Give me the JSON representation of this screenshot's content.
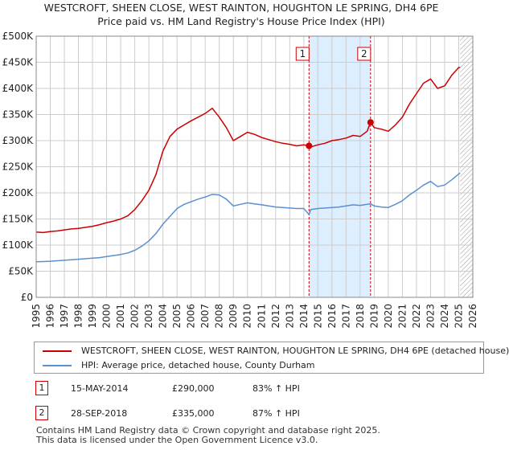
{
  "title_line1": "WESTCROFT, SHEEN CLOSE, WEST RAINTON, HOUGHTON LE SPRING, DH4 6PE",
  "title_line2": "Price paid vs. HM Land Registry's House Price Index (HPI)",
  "colors": {
    "property": "#cc0000",
    "hpi": "#5b8fd0",
    "shade": "#ddeeff",
    "grid": "#cccccc",
    "marker_line": "#cc0000"
  },
  "chart_data": {
    "type": "line",
    "title": "Price paid vs. HM Land Registry's House Price Index (HPI)",
    "xlabel": "",
    "ylabel": "",
    "xlim": [
      1995,
      2026
    ],
    "ylim": [
      0,
      500000
    ],
    "y_ticks": [
      0,
      50000,
      100000,
      150000,
      200000,
      250000,
      300000,
      350000,
      400000,
      450000,
      500000
    ],
    "y_tick_labels": [
      "£0",
      "£50K",
      "£100K",
      "£150K",
      "£200K",
      "£250K",
      "£300K",
      "£350K",
      "£400K",
      "£450K",
      "£500K"
    ],
    "x_ticks": [
      1995,
      1996,
      1997,
      1998,
      1999,
      2000,
      2001,
      2002,
      2003,
      2004,
      2005,
      2006,
      2007,
      2008,
      2009,
      2010,
      2011,
      2012,
      2013,
      2014,
      2015,
      2016,
      2017,
      2018,
      2019,
      2020,
      2021,
      2022,
      2023,
      2024,
      2025,
      2026
    ],
    "x_tick_labels": [
      "1995",
      "1996",
      "1997",
      "1998",
      "1999",
      "2000",
      "2001",
      "2002",
      "2003",
      "2004",
      "2005",
      "2006",
      "2007",
      "2008",
      "2009",
      "2010",
      "2011",
      "2012",
      "2013",
      "2014",
      "2015",
      "2016",
      "2017",
      "2018",
      "2019",
      "2020",
      "2021",
      "2022",
      "2023",
      "2024",
      "2025",
      "2026"
    ],
    "shaded_range": [
      2014.37,
      2018.74
    ],
    "hatched_from": 2025.1,
    "series": [
      {
        "name": "WESTCROFT, SHEEN CLOSE, WEST RAINTON, HOUGHTON LE SPRING, DH4 6PE (detached house)",
        "color": "#cc0000",
        "x": [
          1995.0,
          1995.5,
          1996.0,
          1996.5,
          1997.0,
          1997.5,
          1998.0,
          1998.5,
          1999.0,
          1999.5,
          2000.0,
          2000.5,
          2001.0,
          2001.5,
          2002.0,
          2002.5,
          2003.0,
          2003.5,
          2004.0,
          2004.5,
          2005.0,
          2005.5,
          2006.0,
          2006.5,
          2007.0,
          2007.5,
          2008.0,
          2008.5,
          2009.0,
          2009.5,
          2010.0,
          2010.5,
          2011.0,
          2011.5,
          2012.0,
          2012.5,
          2013.0,
          2013.5,
          2014.0,
          2014.37,
          2014.5,
          2015.0,
          2015.5,
          2016.0,
          2016.5,
          2017.0,
          2017.5,
          2018.0,
          2018.5,
          2018.74,
          2019.0,
          2019.5,
          2020.0,
          2020.5,
          2021.0,
          2021.5,
          2022.0,
          2022.5,
          2023.0,
          2023.5,
          2024.0,
          2024.5,
          2025.0,
          2025.1
        ],
        "values": [
          125000,
          124000,
          126000,
          127000,
          129000,
          131000,
          132000,
          134000,
          136000,
          139000,
          143000,
          146000,
          150000,
          156000,
          168000,
          185000,
          205000,
          235000,
          280000,
          308000,
          322000,
          330000,
          338000,
          345000,
          352000,
          362000,
          345000,
          325000,
          300000,
          308000,
          316000,
          312000,
          306000,
          302000,
          298000,
          295000,
          293000,
          290000,
          292000,
          290000,
          288000,
          292000,
          295000,
          300000,
          302000,
          305000,
          310000,
          308000,
          318000,
          335000,
          325000,
          322000,
          318000,
          330000,
          345000,
          370000,
          390000,
          410000,
          418000,
          400000,
          405000,
          425000,
          440000,
          440000
        ]
      },
      {
        "name": "HPI: Average price, detached house, County Durham",
        "color": "#5b8fd0",
        "x": [
          1995.0,
          1995.5,
          1996.0,
          1996.5,
          1997.0,
          1997.5,
          1998.0,
          1998.5,
          1999.0,
          1999.5,
          2000.0,
          2000.5,
          2001.0,
          2001.5,
          2002.0,
          2002.5,
          2003.0,
          2003.5,
          2004.0,
          2004.5,
          2005.0,
          2005.5,
          2006.0,
          2006.5,
          2007.0,
          2007.5,
          2008.0,
          2008.5,
          2009.0,
          2009.5,
          2010.0,
          2010.5,
          2011.0,
          2011.5,
          2012.0,
          2012.5,
          2013.0,
          2013.5,
          2014.0,
          2014.37,
          2014.5,
          2015.0,
          2015.5,
          2016.0,
          2016.5,
          2017.0,
          2017.5,
          2018.0,
          2018.5,
          2018.74,
          2019.0,
          2019.5,
          2020.0,
          2020.5,
          2021.0,
          2021.5,
          2022.0,
          2022.5,
          2023.0,
          2023.5,
          2024.0,
          2024.5,
          2025.0,
          2025.1
        ],
        "values": [
          68000,
          68500,
          69000,
          70000,
          71000,
          72000,
          73000,
          74000,
          75000,
          76000,
          78000,
          80000,
          82000,
          85000,
          90000,
          98000,
          108000,
          122000,
          140000,
          155000,
          170000,
          178000,
          183000,
          188000,
          192000,
          197000,
          196000,
          188000,
          175000,
          178000,
          181000,
          179000,
          177000,
          175000,
          173000,
          172000,
          171000,
          170000,
          170000,
          158500,
          168000,
          170000,
          171000,
          172000,
          173000,
          175000,
          177000,
          176000,
          178000,
          179000,
          175000,
          173000,
          172000,
          178000,
          185000,
          196000,
          205000,
          215000,
          222000,
          212000,
          215000,
          225000,
          236000,
          238000
        ]
      }
    ],
    "annotations": [
      {
        "label": "1",
        "x": 2014.37,
        "y": 290000
      },
      {
        "label": "2",
        "x": 2018.74,
        "y": 335000
      }
    ]
  },
  "legend": {
    "property_label": "WESTCROFT, SHEEN CLOSE, WEST RAINTON, HOUGHTON LE SPRING, DH4 6PE (detached house)",
    "hpi_label": "HPI: Average price, detached house, County Durham"
  },
  "sales": [
    {
      "num": "1",
      "date": "15-MAY-2014",
      "price": "£290,000",
      "hpi": "83% ↑ HPI"
    },
    {
      "num": "2",
      "date": "28-SEP-2018",
      "price": "£335,000",
      "hpi": "87% ↑ HPI"
    }
  ],
  "footer_line1": "Contains HM Land Registry data © Crown copyright and database right 2025.",
  "footer_line2": "This data is licensed under the Open Government Licence v3.0."
}
